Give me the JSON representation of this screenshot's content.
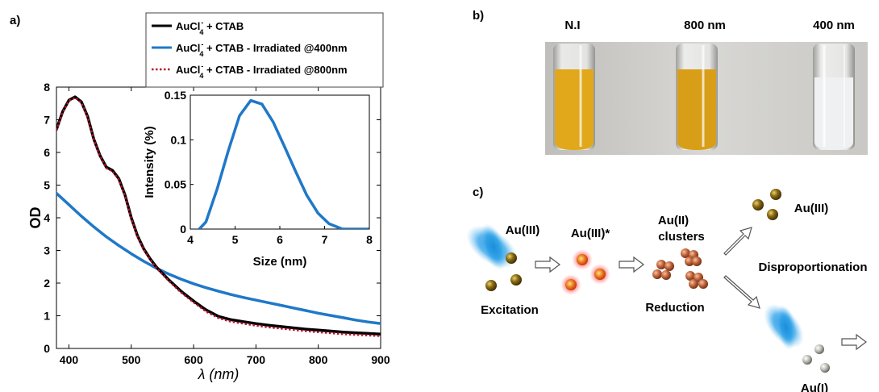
{
  "panels": {
    "a_label": "a)",
    "b_label": "b)",
    "c_label": "c)"
  },
  "chart_data": [
    {
      "type": "line",
      "xlabel": "λ (nm)",
      "ylabel": "OD",
      "xlim": [
        380,
        900
      ],
      "ylim": [
        0,
        8
      ],
      "xticks": [
        400,
        500,
        600,
        700,
        800,
        900
      ],
      "yticks": [
        0,
        1,
        2,
        3,
        4,
        5,
        6,
        7,
        8
      ],
      "legend_position": "top-right",
      "series": [
        {
          "name": "AuCl4- + CTAB",
          "legend_base": "AuCl",
          "legend_sub": "4",
          "legend_sup": "-",
          "legend_rest": " + CTAB",
          "color": "#000000",
          "style": "solid",
          "x": [
            380,
            390,
            400,
            410,
            420,
            430,
            440,
            450,
            460,
            470,
            480,
            490,
            500,
            510,
            520,
            530,
            540,
            560,
            580,
            600,
            620,
            640,
            660,
            680,
            700,
            720,
            740,
            760,
            780,
            800,
            820,
            840,
            860,
            880,
            900
          ],
          "y": [
            6.7,
            7.25,
            7.6,
            7.7,
            7.55,
            7.1,
            6.4,
            5.9,
            5.55,
            5.45,
            5.2,
            4.7,
            4.0,
            3.45,
            3.05,
            2.75,
            2.5,
            2.1,
            1.75,
            1.45,
            1.18,
            0.98,
            0.88,
            0.82,
            0.76,
            0.71,
            0.67,
            0.63,
            0.59,
            0.56,
            0.53,
            0.5,
            0.48,
            0.46,
            0.44
          ]
        },
        {
          "name": "AuCl4- + CTAB - Irradiated @400nm",
          "legend_base": "AuCl",
          "legend_sub": "4",
          "legend_sup": "-",
          "legend_rest": " + CTAB - Irradiated @400nm",
          "color": "#1f78c8",
          "style": "solid",
          "x": [
            380,
            400,
            420,
            440,
            460,
            480,
            500,
            520,
            540,
            560,
            580,
            600,
            620,
            640,
            660,
            680,
            700,
            720,
            740,
            760,
            780,
            800,
            820,
            840,
            860,
            880,
            900
          ],
          "y": [
            4.75,
            4.4,
            4.05,
            3.72,
            3.42,
            3.15,
            2.9,
            2.67,
            2.46,
            2.28,
            2.12,
            1.98,
            1.86,
            1.75,
            1.65,
            1.56,
            1.48,
            1.4,
            1.32,
            1.24,
            1.16,
            1.08,
            1.01,
            0.94,
            0.87,
            0.81,
            0.76
          ]
        },
        {
          "name": "AuCl4- + CTAB - Irradiated @800nm",
          "legend_base": "AuCl",
          "legend_sub": "4",
          "legend_sup": "-",
          "legend_rest": " + CTAB - Irradiated @800nm",
          "color": "#b5122e",
          "style": "dotted",
          "x": [
            380,
            390,
            400,
            410,
            420,
            430,
            440,
            450,
            460,
            470,
            480,
            490,
            500,
            510,
            520,
            530,
            540,
            560,
            580,
            600,
            620,
            640,
            660,
            680,
            700,
            720,
            740,
            760,
            780,
            800,
            820,
            840,
            860,
            880,
            900
          ],
          "y": [
            6.68,
            7.22,
            7.58,
            7.68,
            7.52,
            7.08,
            6.38,
            5.88,
            5.52,
            5.42,
            5.17,
            4.67,
            3.97,
            3.42,
            3.02,
            2.72,
            2.47,
            2.07,
            1.71,
            1.41,
            1.13,
            0.93,
            0.82,
            0.76,
            0.7,
            0.65,
            0.61,
            0.57,
            0.53,
            0.5,
            0.47,
            0.44,
            0.42,
            0.4,
            0.38
          ]
        }
      ]
    },
    {
      "type": "line",
      "role": "inset",
      "xlabel": "Size (nm)",
      "ylabel": "Intensity (%)",
      "xlim": [
        4,
        8
      ],
      "ylim": [
        0,
        0.15
      ],
      "xticks": [
        4,
        5,
        6,
        7,
        8
      ],
      "yticks": [
        0,
        0.05,
        0.1,
        0.15
      ],
      "ytick_labels": [
        "0",
        "0.05",
        "0.1",
        "0.15"
      ],
      "series": [
        {
          "color": "#1f78c8",
          "x": [
            4.2,
            4.35,
            4.6,
            4.85,
            5.1,
            5.35,
            5.6,
            5.85,
            6.1,
            6.35,
            6.6,
            6.85,
            7.1,
            7.4,
            8.0
          ],
          "y": [
            0.0,
            0.008,
            0.045,
            0.088,
            0.127,
            0.144,
            0.14,
            0.12,
            0.093,
            0.065,
            0.038,
            0.018,
            0.006,
            0.0,
            0.0
          ]
        }
      ]
    }
  ],
  "photo": {
    "labels": [
      "N.I",
      "800 nm",
      "400 nm"
    ],
    "liquid_colors": [
      "#e0a81a",
      "#d89e18",
      "#eef0f2"
    ],
    "background": "#cfcfcc"
  },
  "scheme": {
    "au3_label": "Au(III)",
    "au3_star_label": "Au(III)*",
    "au2_label_line1": "Au(II)",
    "au2_label_line2": "clusters",
    "au3_product_label": "Au(III)",
    "disproportionation_label": "Disproportionation",
    "excitation_label": "Excitation",
    "reduction_label": "Reduction",
    "au1_label": "Au(I)"
  }
}
